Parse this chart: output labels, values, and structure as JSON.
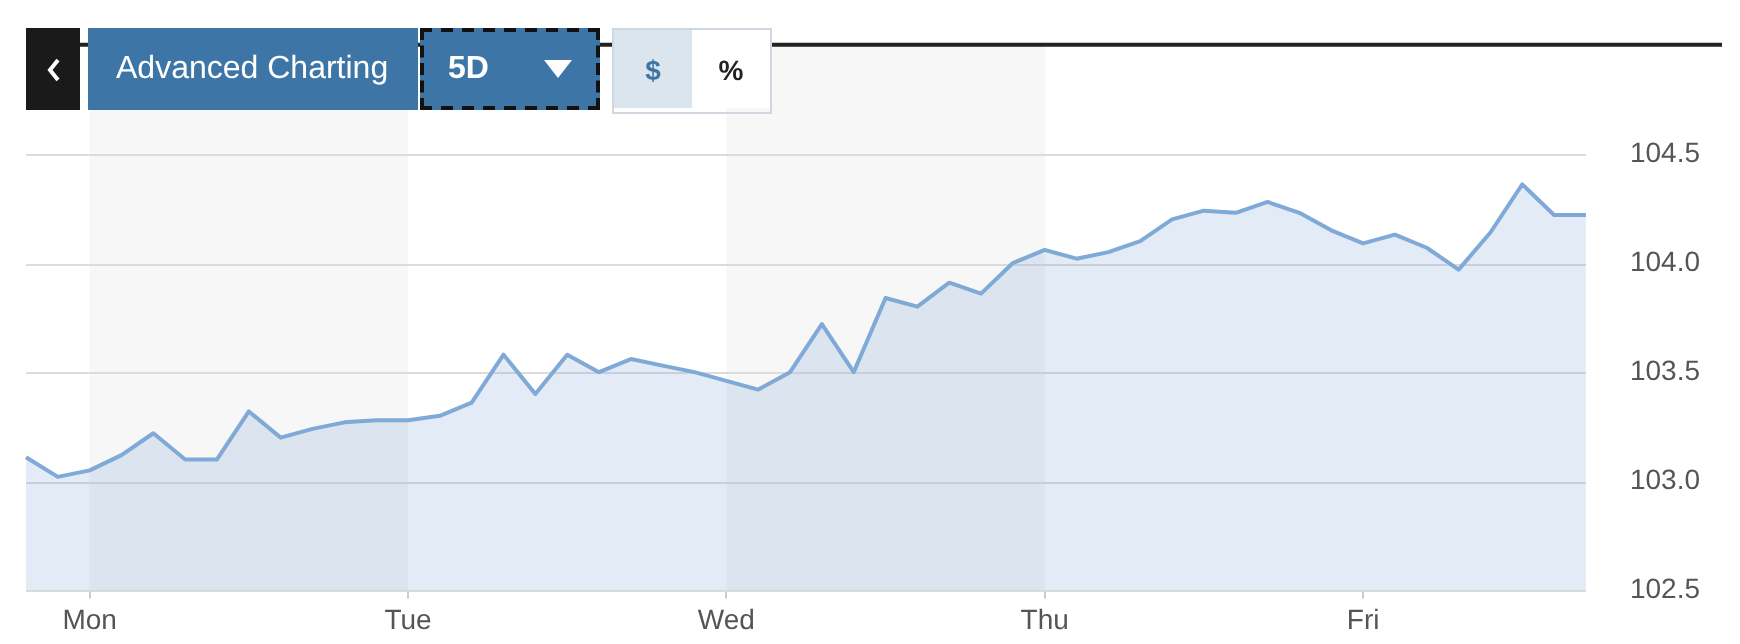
{
  "chart_data": {
    "type": "area",
    "annotations": [
      "Advanced Charting",
      "5D",
      "$",
      "%"
    ],
    "categories": [
      null,
      null,
      "Mon",
      null,
      null,
      null,
      null,
      null,
      null,
      null,
      null,
      null,
      "Tue",
      null,
      null,
      null,
      null,
      null,
      null,
      null,
      null,
      null,
      "Wed",
      null,
      null,
      null,
      null,
      null,
      null,
      null,
      null,
      null,
      "Thu",
      null,
      null,
      null,
      null,
      null,
      null,
      null,
      null,
      null,
      "Fri",
      null,
      null,
      null,
      null,
      null,
      null,
      null
    ],
    "series": [
      {
        "color": "#7fa9d6",
        "values": [
          103.11,
          103.02,
          103.05,
          103.12,
          103.22,
          103.1,
          103.1,
          103.32,
          103.2,
          103.24,
          103.27,
          103.28,
          103.28,
          103.3,
          103.36,
          103.58,
          103.4,
          103.58,
          103.5,
          103.56,
          103.53,
          103.5,
          103.46,
          103.42,
          103.5,
          103.72,
          103.5,
          103.84,
          103.8,
          103.91,
          103.86,
          104.0,
          104.06,
          104.02,
          104.05,
          104.1,
          104.2,
          104.24,
          104.23,
          104.28,
          104.23,
          104.15,
          104.09,
          104.13,
          104.07,
          103.97,
          104.14,
          104.36,
          104.22,
          104.22
        ]
      }
    ],
    "ylim": [
      102.5,
      105
    ],
    "yticks": [
      102.5,
      {
        "value": 103,
        "label": "103.0"
      },
      103.5,
      {
        "value": 104,
        "label": "104.0"
      },
      104.5
    ],
    "bands": [
      {
        "axis": "x",
        "from": "Mon",
        "to": "Tue",
        "color": "#f7f7f7"
      },
      {
        "axis": "x",
        "from": "Wed",
        "to": "Thu",
        "color": "#f7f7f7"
      }
    ],
    "grid": "y"
  }
}
